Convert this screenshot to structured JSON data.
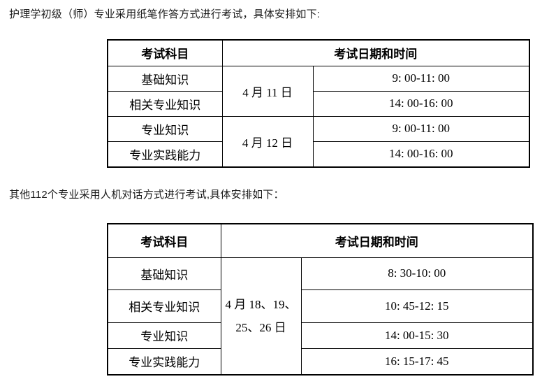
{
  "colors": {
    "page_background": "#ffffff",
    "intro_text": "#1a1a1a",
    "table_text": "#000000",
    "table_border": "#000000"
  },
  "intro": {
    "paper": "护理学初级（师）专业采用纸笔作答方式进行考试，具体安排如下:",
    "computer": "其他112个专业采用人机对话方式进行考试,具体安排如下："
  },
  "paper_table": {
    "headers": {
      "subject": "考试科目",
      "datetime": "考试日期和时间"
    },
    "rows": [
      {
        "subject": "基础知识",
        "date": "4 月 11 日",
        "time": "9: 00-11: 00"
      },
      {
        "subject": "相关专业知识",
        "time": "14: 00-16: 00"
      },
      {
        "subject": "专业知识",
        "date": "4 月 12 日",
        "time": "9: 00-11: 00"
      },
      {
        "subject": "专业实践能力",
        "time": "14: 00-16: 00"
      }
    ]
  },
  "computer_table": {
    "headers": {
      "subject": "考试科目",
      "datetime": "考试日期和时间"
    },
    "date": "4 月 18、19、\n25、26 日",
    "rows": [
      {
        "subject": "基础知识",
        "time": "8: 30-10: 00"
      },
      {
        "subject": "相关专业知识",
        "time": "10: 45-12: 15"
      },
      {
        "subject": "专业知识",
        "time": "14: 00-15: 30"
      },
      {
        "subject": "专业实践能力",
        "time": "16: 15-17: 45"
      }
    ]
  }
}
